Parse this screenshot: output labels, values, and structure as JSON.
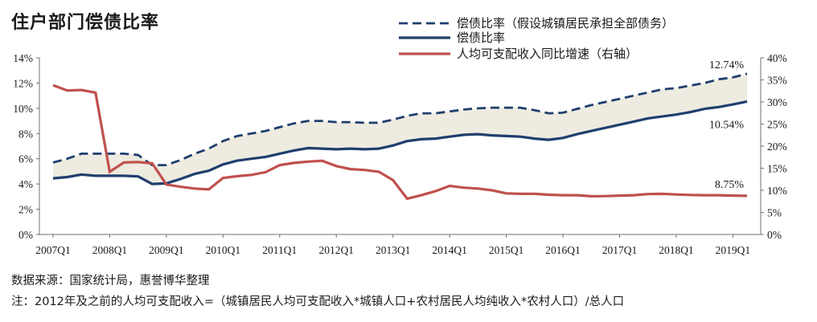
{
  "chart_data": {
    "type": "line",
    "title": "住户部门偿债比率",
    "x_categories": [
      "2007Q1",
      "2007Q2",
      "2007Q3",
      "2007Q4",
      "2008Q1",
      "2008Q2",
      "2008Q3",
      "2008Q4",
      "2009Q1",
      "2009Q2",
      "2009Q3",
      "2009Q4",
      "2010Q1",
      "2010Q2",
      "2010Q3",
      "2010Q4",
      "2011Q1",
      "2011Q2",
      "2011Q3",
      "2011Q4",
      "2012Q1",
      "2012Q2",
      "2012Q3",
      "2012Q4",
      "2013Q1",
      "2013Q2",
      "2013Q3",
      "2013Q4",
      "2014Q1",
      "2014Q2",
      "2014Q3",
      "2014Q4",
      "2015Q1",
      "2015Q2",
      "2015Q3",
      "2015Q4",
      "2016Q1",
      "2016Q2",
      "2016Q3",
      "2016Q4",
      "2017Q1",
      "2017Q2",
      "2017Q3",
      "2017Q4",
      "2018Q1",
      "2018Q2",
      "2018Q3",
      "2018Q4",
      "2019Q1",
      "2019Q2"
    ],
    "x_tick_labels": [
      "2007Q1",
      "2008Q1",
      "2009Q1",
      "2010Q1",
      "2011Q1",
      "2012Q1",
      "2013Q1",
      "2014Q1",
      "2015Q1",
      "2016Q1",
      "2017Q1",
      "2018Q1",
      "2019Q1"
    ],
    "left_axis": {
      "ylim": [
        0,
        14
      ],
      "tick_labels": [
        "0%",
        "2%",
        "4%",
        "6%",
        "8%",
        "10%",
        "12%",
        "14%"
      ]
    },
    "right_axis": {
      "ylim": [
        0,
        40
      ],
      "tick_labels": [
        "0%",
        "5%",
        "10%",
        "15%",
        "20%",
        "25%",
        "30%",
        "35%",
        "40%"
      ]
    },
    "grid": false,
    "legend_placement": "top-right",
    "series": [
      {
        "name": "偿债比率（假设城镇居民承担全部债务）",
        "axis": "left",
        "style": "dashed",
        "color": "#1f3f6e",
        "values": [
          5.7,
          6.0,
          6.4,
          6.4,
          6.4,
          6.4,
          6.3,
          5.5,
          5.5,
          5.9,
          6.4,
          6.8,
          7.4,
          7.8,
          8.0,
          8.2,
          8.5,
          8.8,
          9.0,
          9.0,
          8.9,
          8.9,
          8.85,
          8.85,
          9.1,
          9.4,
          9.6,
          9.6,
          9.75,
          9.9,
          10.0,
          10.05,
          10.05,
          10.05,
          9.85,
          9.6,
          9.65,
          9.95,
          10.25,
          10.5,
          10.75,
          11.0,
          11.25,
          11.5,
          11.6,
          11.8,
          12.0,
          12.3,
          12.45,
          12.74
        ]
      },
      {
        "name": "偿债比率",
        "axis": "left",
        "style": "solid",
        "color": "#1f3f6e",
        "values": [
          4.45,
          4.55,
          4.75,
          4.65,
          4.65,
          4.65,
          4.6,
          4.0,
          4.05,
          4.4,
          4.8,
          5.05,
          5.55,
          5.85,
          6.0,
          6.15,
          6.4,
          6.65,
          6.85,
          6.8,
          6.75,
          6.8,
          6.75,
          6.8,
          7.05,
          7.4,
          7.55,
          7.6,
          7.75,
          7.9,
          7.95,
          7.85,
          7.8,
          7.75,
          7.6,
          7.5,
          7.65,
          7.95,
          8.2,
          8.45,
          8.7,
          8.95,
          9.2,
          9.35,
          9.5,
          9.7,
          9.95,
          10.1,
          10.3,
          10.54
        ]
      },
      {
        "name": "人均可支配收入同比增速（右轴）",
        "axis": "right",
        "style": "solid",
        "color": "#c0504d",
        "values": [
          33.8,
          32.6,
          32.7,
          32.1,
          14.2,
          16.3,
          16.4,
          16.1,
          11.3,
          10.8,
          10.4,
          10.2,
          12.8,
          13.2,
          13.5,
          14.1,
          15.7,
          16.2,
          16.5,
          16.7,
          15.5,
          14.8,
          14.6,
          14.2,
          12.3,
          8.1,
          8.9,
          9.8,
          11.0,
          10.6,
          10.4,
          10.0,
          9.3,
          9.2,
          9.2,
          9.0,
          8.9,
          8.9,
          8.65,
          8.7,
          8.8,
          8.9,
          9.15,
          9.2,
          9.05,
          8.95,
          8.9,
          8.9,
          8.8,
          8.75
        ]
      }
    ],
    "annotations": [
      "12.74%",
      "10.54%",
      "8.75%"
    ]
  },
  "footer": {
    "source": "数据来源：国家统计局，惠誉博华整理",
    "note": "注：2012年及之前的人均可支配收入=（城镇居民人均可支配收入*城镇人口+农村居民人均纯收入*农村人口）/总人口"
  }
}
